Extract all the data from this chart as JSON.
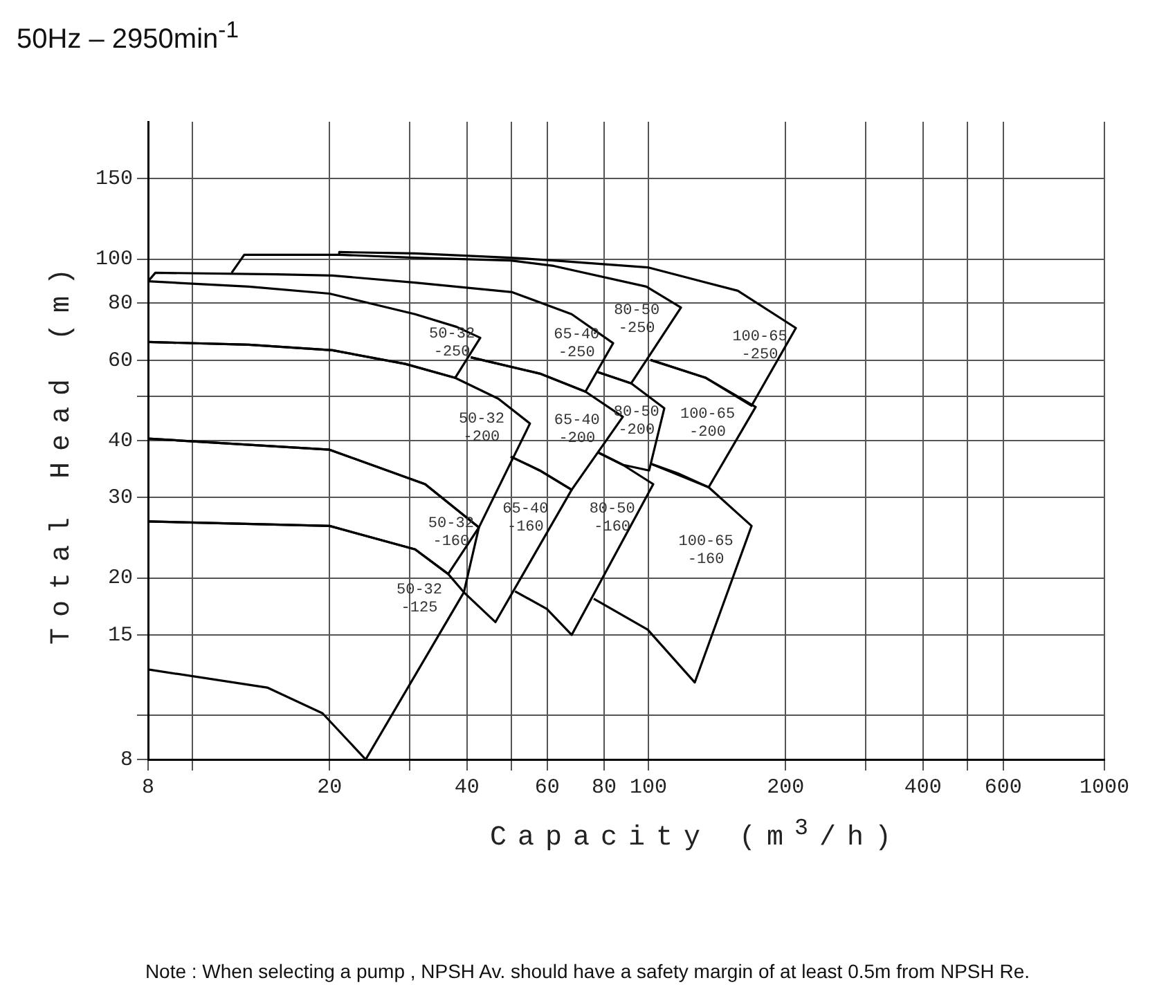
{
  "chart_data": {
    "type": "line",
    "title": "50Hz – 2950min$^{-1}$",
    "xlabel": "Capacity (m$^{3}$/h)",
    "ylabel": "Total Head (m)",
    "log": "xy",
    "grid": true,
    "marker": "none",
    "xlim": [
      8,
      1000
    ],
    "ylim": [
      8,
      200
    ],
    "xticks": [
      8,
      {
        "value": 10,
        "label": null
      },
      20,
      {
        "value": 30,
        "label": null
      },
      40,
      {
        "value": 50,
        "label": null
      },
      60,
      80,
      100,
      200,
      {
        "value": 300,
        "label": null
      },
      400,
      {
        "value": 500,
        "label": null
      },
      600,
      1000
    ],
    "yticks": [
      8,
      {
        "value": 10,
        "label": null
      },
      15,
      20,
      30,
      40,
      {
        "value": 50,
        "label": null
      },
      60,
      80,
      100,
      150
    ],
    "series": [
      {
        "name": "50-32\n-250",
        "color": "#000000",
        "x": [
          8,
          13.3,
          20,
          30.8,
          38,
          42.8,
          37.7,
          29.3,
          20.3,
          13.3,
          8
        ],
        "values": [
          89.4,
          87,
          84,
          75.7,
          71,
          67.2,
          54.9,
          58.9,
          63.1,
          64.9,
          65.8
        ]
      },
      {
        "name": "65-40\n-250",
        "color": "#000000",
        "x": [
          8,
          8.3,
          15.3,
          20.3,
          30.8,
          50.3,
          67.9,
          83.7,
          72.8,
          57.8,
          40.8
        ],
        "values": [
          89.4,
          93.3,
          92.6,
          92,
          88.8,
          84.6,
          75.7,
          65.4,
          51.2,
          56.1,
          60.9
        ]
      },
      {
        "name": "80-50\n-250",
        "color": "#000000",
        "x": [
          12.2,
          13,
          21,
          30.8,
          49.9,
          62,
          99,
          117.9,
          91.7,
          77.5
        ],
        "values": [
          93.3,
          102.2,
          102.2,
          100.7,
          99.3,
          96.6,
          87,
          78.3,
          53.4,
          56.5
        ]
      },
      {
        "name": "100-65\n-250",
        "color": "#000000",
        "x": [
          21,
          21,
          30.8,
          49.9,
          62,
          99.7,
          157.1,
          210.6,
          168.4,
          133.7,
          101.1
        ],
        "values": [
          102.2,
          103.6,
          102.9,
          100.7,
          99.3,
          95.9,
          85.2,
          70.6,
          47.7,
          54.9,
          60.1
        ]
      },
      {
        "name": "50-32\n-200",
        "color": "#000000",
        "x": [
          8,
          13.3,
          20.3,
          29.3,
          37.7,
          46.9,
          55,
          42.5,
          32.4,
          20,
          8
        ],
        "values": [
          65.8,
          64.9,
          63.1,
          58.9,
          54.9,
          49.4,
          43.6,
          25.8,
          32.1,
          38.2,
          40.4
        ]
      },
      {
        "name": "65-40\n-200",
        "color": "#000000",
        "x": [
          40.8,
          57.8,
          72.8,
          87.9,
          67.9,
          57.8,
          49.9
        ],
        "values": [
          60.9,
          56.1,
          51.2,
          45.1,
          31.2,
          34.4,
          36.9
        ]
      },
      {
        "name": "80-50\n-200",
        "color": "#000000",
        "x": [
          77.5,
          91.7,
          108.4,
          100.4,
          87.9,
          77.5
        ],
        "values": [
          56.5,
          53.4,
          47.1,
          34.4,
          35.4,
          37.7
        ]
      },
      {
        "name": "100-65\n-200",
        "color": "#000000",
        "x": [
          101.1,
          133.7,
          171.9,
          135.6,
          116.2,
          101.1
        ],
        "values": [
          60.1,
          54.9,
          47.4,
          31.6,
          33.9,
          35.6
        ]
      },
      {
        "name": "50-32\n-160",
        "color": "#000000",
        "x": [
          8,
          20,
          32.4,
          42.5,
          36.4,
          30.8,
          20,
          8
        ],
        "values": [
          40.4,
          38.2,
          32.1,
          25.8,
          20.4,
          23.1,
          26,
          26.6
        ]
      },
      {
        "name": "50-32\n-125",
        "color": "#000000",
        "x": [
          8,
          20,
          30.8,
          36.4,
          39.4,
          24,
          19.3,
          14.6,
          8
        ],
        "values": [
          26.6,
          26,
          23.1,
          20.4,
          18.6,
          8,
          10.1,
          11.5,
          12.6
        ]
      },
      {
        "name": "65-40\n-160",
        "color": "#000000",
        "x": [
          49.9,
          57.8,
          67.9,
          46.2,
          39.4,
          42.5
        ],
        "values": [
          36.9,
          34.4,
          31.2,
          16,
          18.6,
          25.8
        ]
      },
      {
        "name": "80-50\n-160",
        "color": "#000000",
        "x": [
          77.5,
          87.9,
          102.5,
          67.9,
          59.9,
          51
        ],
        "values": [
          37.7,
          35.4,
          32.1,
          15,
          17.1,
          18.7
        ]
      },
      {
        "name": "100-65\n-160",
        "color": "#000000",
        "x": [
          101.1,
          135.6,
          168.4,
          126.4,
          99.7,
          75.9
        ],
        "values": [
          35.6,
          31.6,
          26,
          11.8,
          15.4,
          18
        ]
      }
    ],
    "annotations": [
      "Note : When selecting a pump , NPSH Av. should have a safety margin of at least 0.5m from NPSH Re."
    ]
  }
}
